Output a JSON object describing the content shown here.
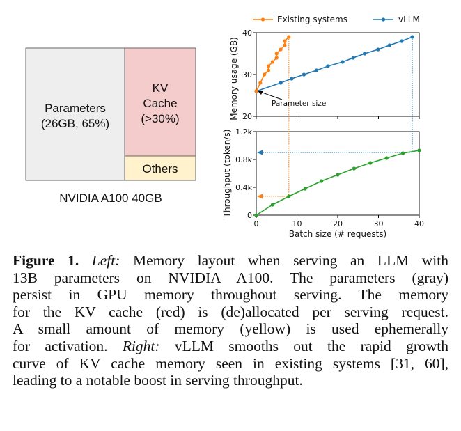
{
  "memory_layout": {
    "parameters_label": [
      "Parameters",
      "(26GB, 65%)"
    ],
    "kv_cache_label": [
      "KV",
      "Cache",
      "(>30%)"
    ],
    "others_label": "Others",
    "device_label": "NVIDIA A100 40GB",
    "colors": {
      "parameters": "#eeeeee",
      "kv_cache": "#f4cccc",
      "others": "#fff2cc",
      "border": "#666666"
    }
  },
  "chart_data": [
    {
      "type": "line",
      "ylabel": "Memory usage (GB)",
      "xlim": [
        0,
        40
      ],
      "ylim": [
        20,
        40
      ],
      "yticks": [
        "20",
        "30",
        "40"
      ],
      "legend": {
        "placement": "top"
      },
      "annotation": "Parameter size",
      "series": [
        {
          "name": "Existing systems",
          "color": "#ff7f0e",
          "x": [
            0,
            1,
            2,
            3,
            3,
            4,
            5,
            5,
            6,
            7,
            7,
            8
          ],
          "y": [
            26,
            28,
            30,
            31,
            32,
            33,
            34,
            35,
            36,
            37,
            38,
            39
          ]
        },
        {
          "name": "vLLM",
          "color": "#1f77b4",
          "x": [
            0,
            6,
            8.7,
            11.7,
            14.8,
            17.6,
            21.2,
            23.8,
            26.6,
            29.9,
            32.7,
            35.7,
            38.3
          ],
          "y": [
            26,
            28,
            29,
            30,
            31,
            32,
            33,
            34,
            35,
            36,
            37,
            38,
            39
          ]
        }
      ]
    },
    {
      "type": "line",
      "xlabel": "Batch size (# requests)",
      "ylabel": "Throughput (token/s)",
      "xlim": [
        0,
        40
      ],
      "ylim": [
        0,
        1.2
      ],
      "xticks": [
        "0",
        "10",
        "20",
        "30",
        "40"
      ],
      "yticks": [
        "0",
        "0.4k",
        "0.8k",
        "1.2k"
      ],
      "series": [
        {
          "color": "#2ca02c",
          "x": [
            0,
            4,
            8,
            12,
            16,
            20,
            24,
            28,
            32,
            36,
            40
          ],
          "y": [
            0,
            0.15,
            0.27,
            0.38,
            0.49,
            0.58,
            0.67,
            0.75,
            0.82,
            0.89,
            0.93
          ]
        }
      ],
      "markers": [
        {
          "system": "Existing systems",
          "batch": 8,
          "throughput": 0.27,
          "color": "#ff7f0e"
        },
        {
          "system": "vLLM",
          "batch": 38.3,
          "throughput": 0.9,
          "color": "#1f77b4"
        }
      ]
    }
  ],
  "caption": {
    "lines": [
      [
        {
          "b": "Figure 1."
        },
        {
          "t": " "
        },
        {
          "i": "Left:"
        },
        {
          "t": " Memory layout when serving an LLM with"
        }
      ],
      [
        {
          "t": "13B parameters on NVIDIA A100. The parameters (gray)"
        }
      ],
      [
        {
          "t": "persist in GPU memory throughout serving. The memory"
        }
      ],
      [
        {
          "t": "for the KV cache (red) is (de)allocated per serving request."
        }
      ],
      [
        {
          "t": "A small amount of memory (yellow) is used ephemerally"
        }
      ],
      [
        {
          "t": "for activation. "
        },
        {
          "i": "Right:"
        },
        {
          "t": " vLLM smooths out the rapid growth"
        }
      ],
      [
        {
          "t": "curve of KV cache memory seen in existing systems [31, 60],"
        }
      ],
      [
        {
          "t": "leading to a notable boost in serving throughput."
        }
      ]
    ]
  }
}
